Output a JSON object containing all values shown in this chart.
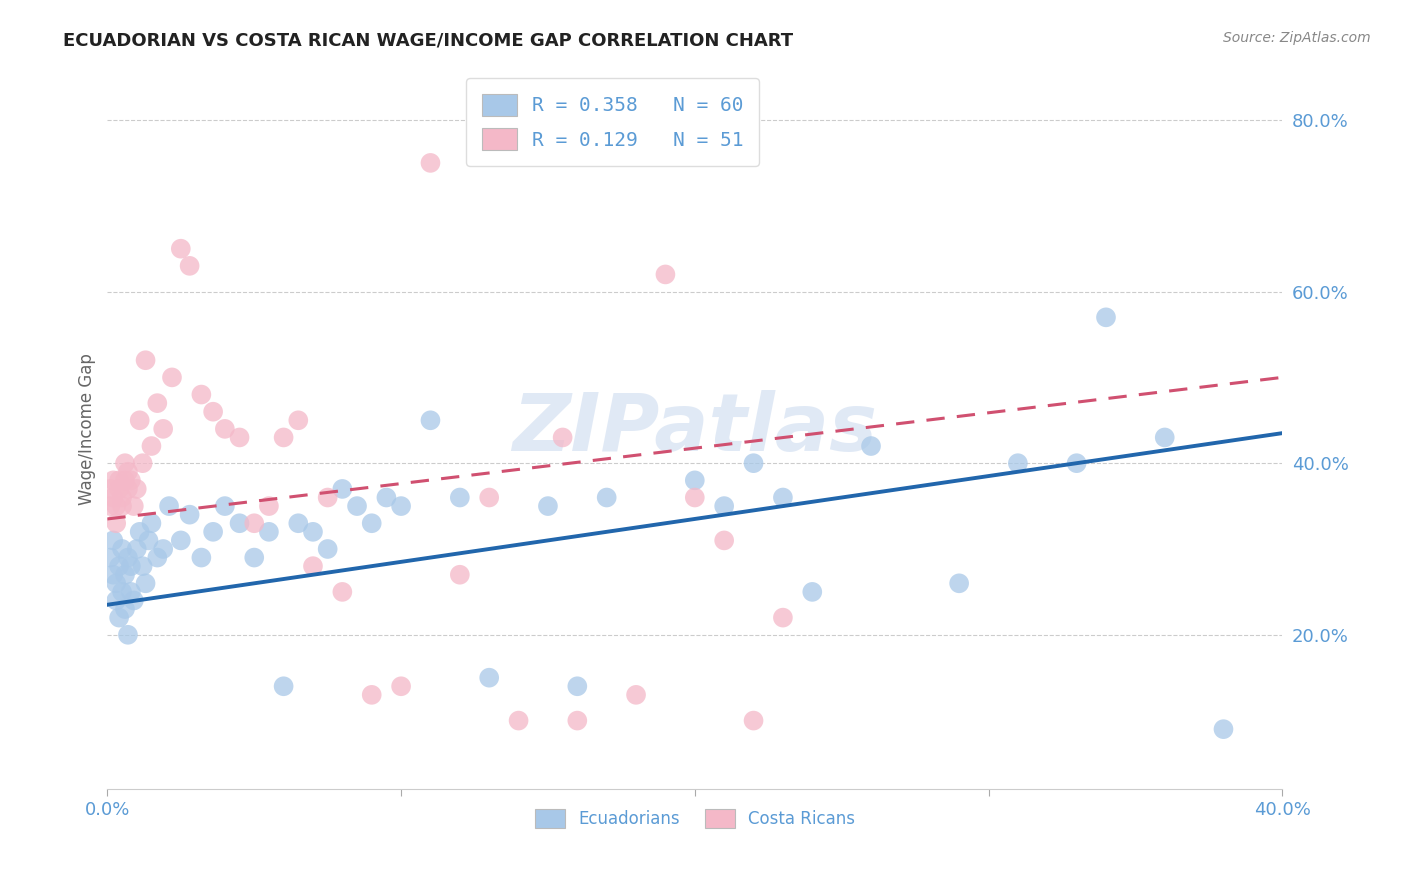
{
  "title": "ECUADORIAN VS COSTA RICAN WAGE/INCOME GAP CORRELATION CHART",
  "source": "Source: ZipAtlas.com",
  "tick_color": "#5b9bd5",
  "ylabel": "Wage/Income Gap",
  "x_min": 0.0,
  "x_max": 0.4,
  "y_min": 0.02,
  "y_max": 0.86,
  "y_ticks_right": [
    0.2,
    0.4,
    0.6,
    0.8
  ],
  "y_tick_labels_right": [
    "20.0%",
    "40.0%",
    "60.0%",
    "80.0%"
  ],
  "blue_R": 0.358,
  "blue_N": 60,
  "pink_R": 0.129,
  "pink_N": 51,
  "blue_color": "#a8c8e8",
  "pink_color": "#f4b8c8",
  "blue_line_color": "#2166ac",
  "pink_line_color": "#d05070",
  "watermark": "ZIPatlas",
  "legend_label1": "Ecuadorians",
  "legend_label2": "Costa Ricans",
  "blue_x": [
    0.001,
    0.002,
    0.002,
    0.003,
    0.003,
    0.004,
    0.004,
    0.005,
    0.005,
    0.006,
    0.006,
    0.007,
    0.007,
    0.008,
    0.008,
    0.009,
    0.01,
    0.011,
    0.012,
    0.013,
    0.014,
    0.015,
    0.017,
    0.019,
    0.021,
    0.025,
    0.028,
    0.032,
    0.036,
    0.04,
    0.045,
    0.05,
    0.055,
    0.06,
    0.065,
    0.07,
    0.075,
    0.08,
    0.085,
    0.09,
    0.095,
    0.1,
    0.11,
    0.12,
    0.13,
    0.15,
    0.16,
    0.17,
    0.2,
    0.21,
    0.22,
    0.23,
    0.24,
    0.26,
    0.29,
    0.31,
    0.33,
    0.34,
    0.36,
    0.38
  ],
  "blue_y": [
    0.29,
    0.27,
    0.31,
    0.26,
    0.24,
    0.28,
    0.22,
    0.3,
    0.25,
    0.27,
    0.23,
    0.29,
    0.2,
    0.28,
    0.25,
    0.24,
    0.3,
    0.32,
    0.28,
    0.26,
    0.31,
    0.33,
    0.29,
    0.3,
    0.35,
    0.31,
    0.34,
    0.29,
    0.32,
    0.35,
    0.33,
    0.29,
    0.32,
    0.14,
    0.33,
    0.32,
    0.3,
    0.37,
    0.35,
    0.33,
    0.36,
    0.35,
    0.45,
    0.36,
    0.15,
    0.35,
    0.14,
    0.36,
    0.38,
    0.35,
    0.4,
    0.36,
    0.25,
    0.42,
    0.26,
    0.4,
    0.4,
    0.57,
    0.43,
    0.09
  ],
  "pink_x": [
    0.001,
    0.001,
    0.002,
    0.002,
    0.003,
    0.003,
    0.004,
    0.004,
    0.005,
    0.005,
    0.006,
    0.006,
    0.007,
    0.007,
    0.008,
    0.009,
    0.01,
    0.011,
    0.012,
    0.013,
    0.015,
    0.017,
    0.019,
    0.022,
    0.025,
    0.028,
    0.032,
    0.036,
    0.04,
    0.045,
    0.05,
    0.055,
    0.06,
    0.065,
    0.07,
    0.075,
    0.08,
    0.09,
    0.1,
    0.11,
    0.12,
    0.13,
    0.14,
    0.155,
    0.16,
    0.18,
    0.19,
    0.2,
    0.21,
    0.22,
    0.23
  ],
  "pink_y": [
    0.37,
    0.35,
    0.38,
    0.36,
    0.33,
    0.35,
    0.37,
    0.38,
    0.35,
    0.36,
    0.38,
    0.4,
    0.37,
    0.39,
    0.38,
    0.35,
    0.37,
    0.45,
    0.4,
    0.52,
    0.42,
    0.47,
    0.44,
    0.5,
    0.65,
    0.63,
    0.48,
    0.46,
    0.44,
    0.43,
    0.33,
    0.35,
    0.43,
    0.45,
    0.28,
    0.36,
    0.25,
    0.13,
    0.14,
    0.75,
    0.27,
    0.36,
    0.1,
    0.43,
    0.1,
    0.13,
    0.62,
    0.36,
    0.31,
    0.1,
    0.22
  ],
  "blue_line_x0": 0.0,
  "blue_line_y0": 0.235,
  "blue_line_x1": 0.4,
  "blue_line_y1": 0.435,
  "pink_line_x0": 0.0,
  "pink_line_y0": 0.335,
  "pink_line_x1": 0.4,
  "pink_line_y1": 0.5
}
